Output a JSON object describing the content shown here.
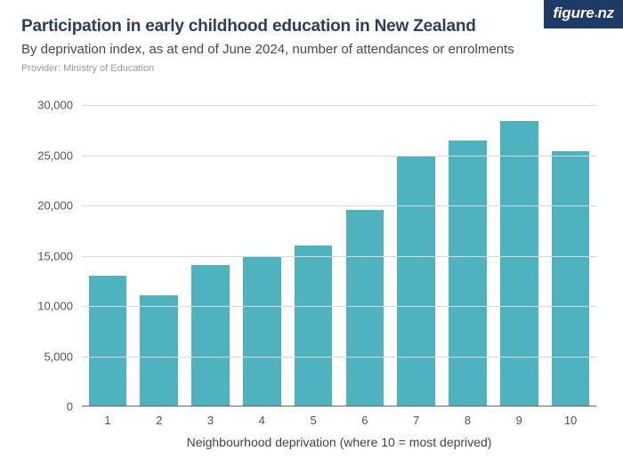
{
  "header": {
    "title": "Participation in early childhood education in New Zealand",
    "subtitle": "By deprivation index, as at end of June 2024, number of attendances or enrolments",
    "provider": "Provider: Ministry of Education",
    "title_color": "#2d3e5e",
    "title_fontsize": 19,
    "subtitle_color": "#4a4a4a",
    "subtitle_fontsize": 15,
    "provider_color": "#9a9a9a",
    "provider_fontsize": 11
  },
  "logo": {
    "text_a": "figure",
    "text_b": ".",
    "text_c": "nz",
    "bg_color": "#1d3b66",
    "fg_color": "#ffffff",
    "fontsize": 17
  },
  "chart": {
    "type": "bar",
    "categories": [
      "1",
      "2",
      "3",
      "4",
      "5",
      "6",
      "7",
      "8",
      "9",
      "10"
    ],
    "values": [
      13000,
      11100,
      14100,
      15000,
      16000,
      19600,
      25000,
      26500,
      28400,
      25400
    ],
    "bar_color": "#4fb3bf",
    "bar_width": 0.74,
    "background_color": "#ffffff",
    "grid_color": "#d9d9d9",
    "axis_color": "#666666",
    "tick_label_color": "#555555",
    "tick_fontsize": 13,
    "ylim": [
      0,
      30000
    ],
    "ytick_step": 5000,
    "ytick_labels": [
      "0",
      "5,000",
      "10,000",
      "15,000",
      "20,000",
      "25,000",
      "30,000"
    ],
    "xlabel": "Neighbourhood deprivation (where 10 = most deprived)",
    "xlabel_fontsize": 14,
    "xlabel_color": "#444444"
  }
}
